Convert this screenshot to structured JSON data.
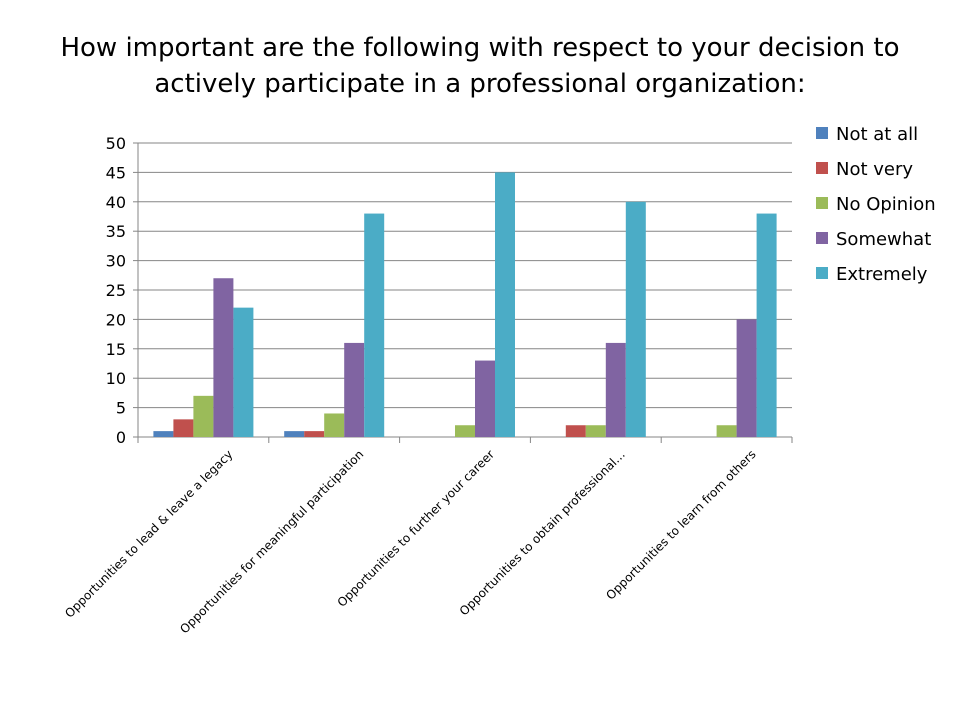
{
  "chart_data": {
    "type": "bar",
    "title_lines": [
      "How important are the following with respect to your decision to",
      "actively participate in a professional organization:"
    ],
    "categories": [
      "Opportunities to lead & leave a legacy",
      "Opportunities for meaningful participation",
      "Opportunities to further your career",
      "Opportunities to obtain professional…",
      "Opportunities to learn from others"
    ],
    "series": [
      {
        "name": "Not at all",
        "color": "#4F81BD",
        "values": [
          1,
          1,
          0,
          0,
          0
        ]
      },
      {
        "name": "Not very",
        "color": "#C0504D",
        "values": [
          3,
          1,
          0,
          2,
          0
        ]
      },
      {
        "name": "No Opinion",
        "color": "#9BBB59",
        "values": [
          7,
          4,
          2,
          2,
          2
        ]
      },
      {
        "name": "Somewhat",
        "color": "#8064A2",
        "values": [
          27,
          16,
          13,
          16,
          20
        ]
      },
      {
        "name": "Extremely",
        "color": "#4BACC6",
        "values": [
          22,
          38,
          45,
          40,
          38
        ]
      }
    ],
    "ylim": [
      0,
      50
    ],
    "yticks": [
      0,
      5,
      10,
      15,
      20,
      25,
      30,
      35,
      40,
      45,
      50
    ],
    "grid": true,
    "legend_position": "right"
  }
}
